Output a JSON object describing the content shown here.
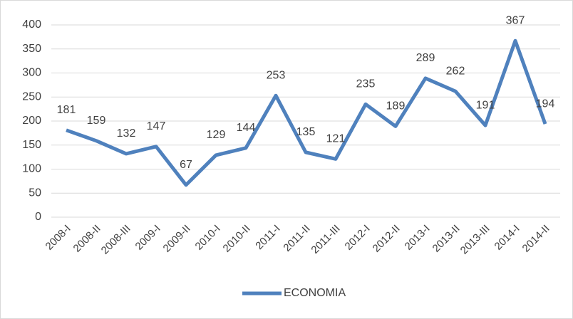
{
  "chart_data": {
    "type": "line",
    "categories": [
      "2008-I",
      "2008-II",
      "2008-III",
      "2009-I",
      "2009-II",
      "2010-I",
      "2010-II",
      "2011-I",
      "2011-II",
      "2011-III",
      "2012-I",
      "2012-II",
      "2013-I",
      "2013-II",
      "2013-III",
      "2014-I",
      "2014-II"
    ],
    "series": [
      {
        "name": "ECONOMIA",
        "color": "#4f81bd",
        "values": [
          181,
          159,
          132,
          147,
          67,
          129,
          144,
          253,
          135,
          121,
          235,
          189,
          289,
          262,
          191,
          367,
          194
        ]
      }
    ],
    "ylim": [
      0,
      400
    ],
    "yticks": [
      0,
      50,
      100,
      150,
      200,
      250,
      300,
      350,
      400
    ],
    "grid": true,
    "legend": "bottom"
  }
}
